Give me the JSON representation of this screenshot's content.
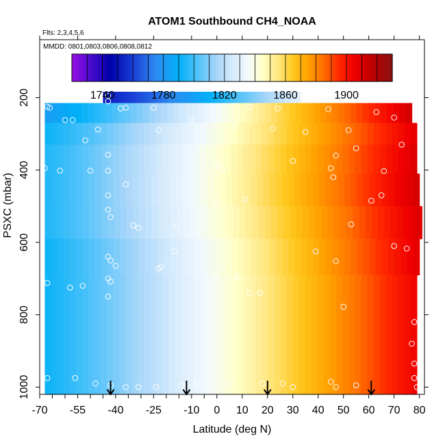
{
  "chart_data": {
    "type": "heatmap",
    "title": "ATOM1 Southbound CH4_NOAA",
    "flights_label": "Flts: 2,3,4,5,6",
    "dates_label": "MMDD: 0801,0803,0806,0808,0812",
    "xlabel": "Latitude (deg N)",
    "ylabel": "PSXC (mbar)",
    "xlim": [
      -70,
      82
    ],
    "ylim": [
      1020,
      40
    ],
    "x_ticks": [
      -70,
      -55,
      -40,
      -25,
      -10,
      0,
      10,
      20,
      30,
      40,
      50,
      60,
      70,
      80
    ],
    "x_tick_labels": [
      "-70",
      "-55",
      "-40",
      "-25",
      "-10",
      "0",
      "10",
      "20",
      "30",
      "40",
      "50",
      "60",
      "70",
      "80"
    ],
    "x_minor_ticks": [
      -65,
      -60,
      -50,
      -45,
      -35,
      -30,
      -20,
      -15,
      -5
    ],
    "y_ticks": [
      200,
      400,
      600,
      800,
      1000
    ],
    "y_tick_labels": [
      "200",
      "400",
      "600",
      "800",
      "1000"
    ],
    "colorbar": {
      "min": 1720,
      "max": 1930,
      "ticks": [
        1740,
        1780,
        1820,
        1860,
        1900
      ],
      "tick_labels": [
        "1740",
        "1780",
        "1820",
        "1860",
        "1900"
      ],
      "divisions": [
        1760,
        1800,
        1840,
        1880,
        1920
      ]
    },
    "color_stops": [
      {
        "v": 1720,
        "c": "#9A10E6"
      },
      {
        "v": 1735,
        "c": "#3A0AC8"
      },
      {
        "v": 1745,
        "c": "#0000A8"
      },
      {
        "v": 1760,
        "c": "#1A3DD6"
      },
      {
        "v": 1775,
        "c": "#2E8BF0"
      },
      {
        "v": 1790,
        "c": "#00B0F8"
      },
      {
        "v": 1805,
        "c": "#62C6FA"
      },
      {
        "v": 1815,
        "c": "#A8D6FA"
      },
      {
        "v": 1825,
        "c": "#D4EAFC"
      },
      {
        "v": 1835,
        "c": "#F2F9FE"
      },
      {
        "v": 1845,
        "c": "#FFFFC8"
      },
      {
        "v": 1855,
        "c": "#FFE680"
      },
      {
        "v": 1865,
        "c": "#FFC81E"
      },
      {
        "v": 1875,
        "c": "#FFA000"
      },
      {
        "v": 1885,
        "c": "#FF6E00"
      },
      {
        "v": 1895,
        "c": "#FF2800"
      },
      {
        "v": 1905,
        "c": "#F00000"
      },
      {
        "v": 1915,
        "c": "#C40000"
      },
      {
        "v": 1930,
        "c": "#8A1010"
      }
    ],
    "field_rows": [
      {
        "p_top": 165,
        "p_bot": 215,
        "x_start": -45,
        "x_end": 33,
        "v_start": 1752,
        "v_end": 1830
      },
      {
        "p_top": 215,
        "p_bot": 270,
        "x_start": -68,
        "x_end": 77,
        "v_start": 1782,
        "v_end": 1912
      },
      {
        "p_top": 270,
        "p_bot": 330,
        "x_start": -68,
        "x_end": 79,
        "v_start": 1792,
        "v_end": 1908
      },
      {
        "p_top": 330,
        "p_bot": 410,
        "x_start": -68,
        "x_end": 79,
        "v_start": 1795,
        "v_end": 1910
      },
      {
        "p_top": 410,
        "p_bot": 500,
        "x_start": -68,
        "x_end": 80,
        "v_start": 1795,
        "v_end": 1912
      },
      {
        "p_top": 500,
        "p_bot": 590,
        "x_start": -68,
        "x_end": 81,
        "v_start": 1795,
        "v_end": 1910
      },
      {
        "p_top": 590,
        "p_bot": 690,
        "x_start": -68,
        "x_end": 80,
        "v_start": 1792,
        "v_end": 1908
      },
      {
        "p_top": 690,
        "p_bot": 800,
        "x_start": -68,
        "x_end": 79,
        "v_start": 1792,
        "v_end": 1905
      },
      {
        "p_top": 800,
        "p_bot": 900,
        "x_start": -68,
        "x_end": 79,
        "v_start": 1792,
        "v_end": 1905
      },
      {
        "p_top": 900,
        "p_bot": 1020,
        "x_start": -68,
        "x_end": 79,
        "v_start": 1792,
        "v_end": 1905
      }
    ],
    "sample_points": [
      {
        "lat": -43,
        "p": 195
      },
      {
        "lat": -43,
        "p": 210
      },
      {
        "lat": -67,
        "p": 225
      },
      {
        "lat": -66,
        "p": 228
      },
      {
        "lat": -36,
        "p": 228
      },
      {
        "lat": -25,
        "p": 228
      },
      {
        "lat": -38,
        "p": 230
      },
      {
        "lat": 13,
        "p": 225
      },
      {
        "lat": 24,
        "p": 230
      },
      {
        "lat": 44,
        "p": 232
      },
      {
        "lat": 63,
        "p": 240
      },
      {
        "lat": 70,
        "p": 255
      },
      {
        "lat": -60,
        "p": 262
      },
      {
        "lat": -57,
        "p": 262
      },
      {
        "lat": -10,
        "p": 262
      },
      {
        "lat": 7,
        "p": 278
      },
      {
        "lat": 22,
        "p": 285
      },
      {
        "lat": -47,
        "p": 288
      },
      {
        "lat": -23,
        "p": 290
      },
      {
        "lat": 52,
        "p": 290
      },
      {
        "lat": 35,
        "p": 295
      },
      {
        "lat": -52,
        "p": 318
      },
      {
        "lat": 55,
        "p": 340
      },
      {
        "lat": 73,
        "p": 330
      },
      {
        "lat": -43,
        "p": 358
      },
      {
        "lat": 47,
        "p": 360
      },
      {
        "lat": 30,
        "p": 375
      },
      {
        "lat": 0,
        "p": 388
      },
      {
        "lat": -68,
        "p": 395
      },
      {
        "lat": 45,
        "p": 395
      },
      {
        "lat": -62,
        "p": 402
      },
      {
        "lat": -50,
        "p": 402
      },
      {
        "lat": -43,
        "p": 402
      },
      {
        "lat": 2,
        "p": 400
      },
      {
        "lat": 66,
        "p": 403
      },
      {
        "lat": 46,
        "p": 420
      },
      {
        "lat": -36,
        "p": 440
      },
      {
        "lat": 65,
        "p": 470
      },
      {
        "lat": 61,
        "p": 485
      },
      {
        "lat": -43,
        "p": 470
      },
      {
        "lat": 11,
        "p": 482
      },
      {
        "lat": 0,
        "p": 490
      },
      {
        "lat": -43,
        "p": 510
      },
      {
        "lat": -42,
        "p": 530
      },
      {
        "lat": -33,
        "p": 553
      },
      {
        "lat": -31,
        "p": 560
      },
      {
        "lat": -16,
        "p": 555
      },
      {
        "lat": 53,
        "p": 550
      },
      {
        "lat": 70,
        "p": 610
      },
      {
        "lat": 75,
        "p": 617
      },
      {
        "lat": -17,
        "p": 625
      },
      {
        "lat": 39,
        "p": 625
      },
      {
        "lat": -43,
        "p": 640
      },
      {
        "lat": -42,
        "p": 650
      },
      {
        "lat": 47,
        "p": 652
      },
      {
        "lat": -40,
        "p": 665
      },
      {
        "lat": 2,
        "p": 665
      },
      {
        "lat": -22,
        "p": 668
      },
      {
        "lat": -23,
        "p": 672
      },
      {
        "lat": 0,
        "p": 692
      },
      {
        "lat": 8,
        "p": 695
      },
      {
        "lat": -43,
        "p": 700
      },
      {
        "lat": -42,
        "p": 708
      },
      {
        "lat": -67,
        "p": 712
      },
      {
        "lat": -53,
        "p": 720
      },
      {
        "lat": -58,
        "p": 725
      },
      {
        "lat": -43,
        "p": 750
      },
      {
        "lat": 13,
        "p": 740
      },
      {
        "lat": 17,
        "p": 740
      },
      {
        "lat": 50,
        "p": 778
      },
      {
        "lat": 78,
        "p": 820
      },
      {
        "lat": 77,
        "p": 880
      },
      {
        "lat": 78,
        "p": 935
      },
      {
        "lat": -67,
        "p": 975
      },
      {
        "lat": -56,
        "p": 975
      },
      {
        "lat": -48,
        "p": 990
      },
      {
        "lat": -42,
        "p": 995
      },
      {
        "lat": -36,
        "p": 1000
      },
      {
        "lat": -31,
        "p": 1000
      },
      {
        "lat": -24,
        "p": 1000
      },
      {
        "lat": -14,
        "p": 995
      },
      {
        "lat": -8,
        "p": 990
      },
      {
        "lat": 0,
        "p": 990
      },
      {
        "lat": 5,
        "p": 990
      },
      {
        "lat": 18,
        "p": 990
      },
      {
        "lat": 26,
        "p": 990
      },
      {
        "lat": 30,
        "p": 1000
      },
      {
        "lat": 45,
        "p": 985
      },
      {
        "lat": 47,
        "p": 1000
      },
      {
        "lat": 55,
        "p": 995
      },
      {
        "lat": 78,
        "p": 975
      },
      {
        "lat": 79,
        "p": 1000
      }
    ],
    "arrows_lat": [
      -42,
      -12,
      20,
      61
    ]
  }
}
